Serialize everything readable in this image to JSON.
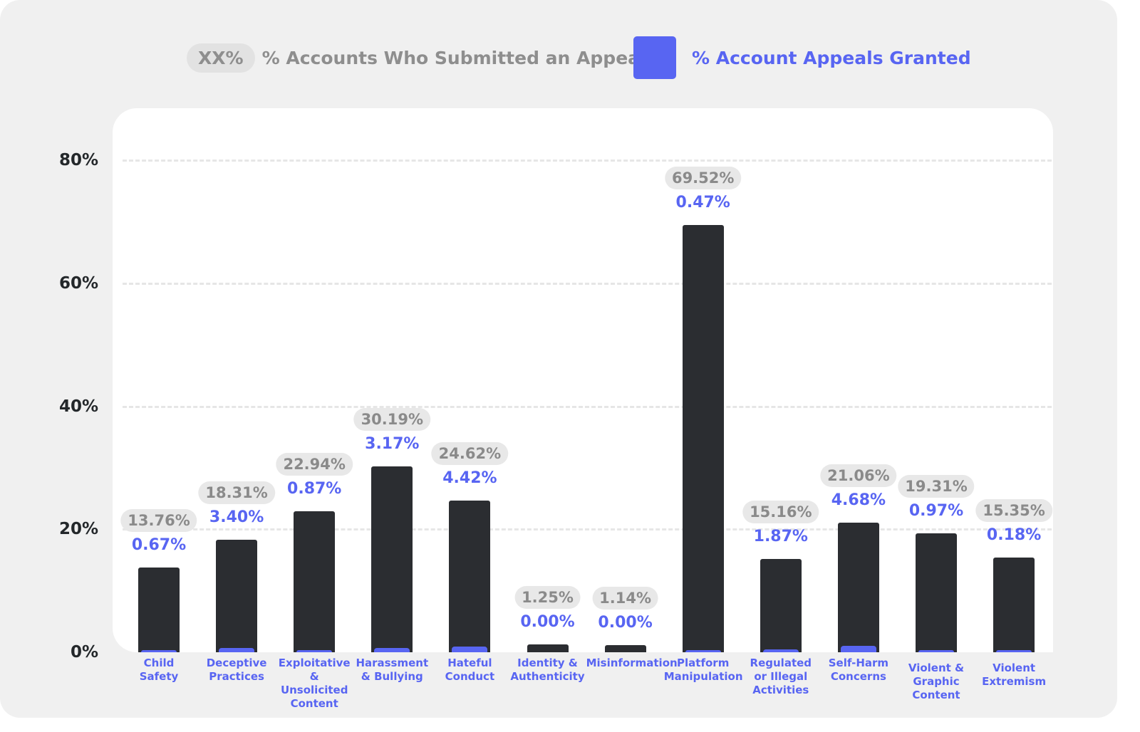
{
  "legend": {
    "placeholder": "XX%",
    "appeal_label": "% Accounts Who Submitted an Appeal",
    "granted_label": "% Account Appeals Granted"
  },
  "colors": {
    "submitted_bar": "#2b2d31",
    "granted_bar": "#5865f2",
    "background": "#f0f0f0"
  },
  "chart_data": {
    "type": "bar",
    "title": "",
    "xlabel": "",
    "ylabel": "",
    "ylim": [
      0,
      80
    ],
    "yticks": [
      "0%",
      "20%",
      "40%",
      "60%",
      "80%"
    ],
    "grid": true,
    "legend_position": "top",
    "categories": [
      "Child\nSafety",
      "Deceptive\nPractices",
      "Exploitative\n& Unsolicited\nContent",
      "Harassment\n& Bullying",
      "Hateful\nConduct",
      "Identity &\nAuthenticity",
      "Misinformation",
      "Platform\nManipulation",
      "Regulated\nor Illegal\nActivities",
      "Self-Harm\nConcerns",
      "Violent &\nGraphic\nContent",
      "Violent\nExtremism"
    ],
    "series": [
      {
        "name": "% Accounts Who Submitted an Appeal",
        "values": [
          13.76,
          18.31,
          22.94,
          30.19,
          24.62,
          1.25,
          1.14,
          69.52,
          15.16,
          21.06,
          19.31,
          15.35
        ],
        "labels": [
          "13.76%",
          "18.31%",
          "22.94%",
          "30.19%",
          "24.62%",
          "1.25%",
          "1.14%",
          "69.52%",
          "15.16%",
          "21.06%",
          "19.31%",
          "15.35%"
        ]
      },
      {
        "name": "% Account Appeals Granted",
        "values": [
          0.67,
          3.4,
          0.87,
          3.17,
          4.42,
          0.0,
          0.0,
          0.47,
          1.87,
          4.68,
          0.97,
          0.18
        ],
        "labels": [
          "0.67%",
          "3.40%",
          "0.87%",
          "3.17%",
          "4.42%",
          "0.00%",
          "0.00%",
          "0.47%",
          "1.87%",
          "4.68%",
          "0.97%",
          "0.18%"
        ]
      }
    ]
  }
}
